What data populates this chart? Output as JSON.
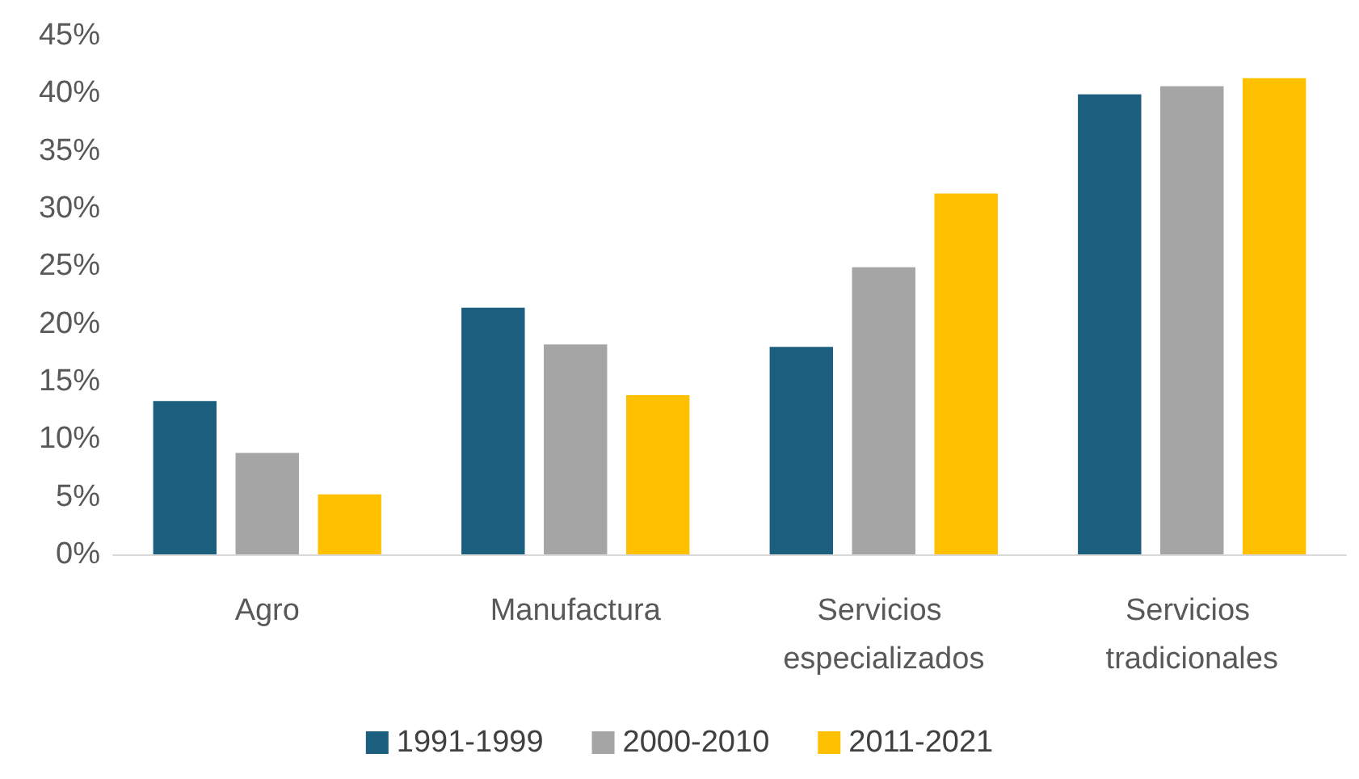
{
  "chart_data": {
    "type": "bar",
    "categories": [
      "Agro",
      "Manufactura",
      "Servicios especializados",
      "Servicios tradicionales"
    ],
    "series": [
      {
        "name": "1991-1999",
        "color": "#1b5e7e",
        "values": [
          13.3,
          21.4,
          18.0,
          39.9
        ]
      },
      {
        "name": "2000-2010",
        "color": "#a5a5a5",
        "values": [
          8.8,
          18.2,
          24.9,
          40.6
        ]
      },
      {
        "name": "2011-2021",
        "color": "#ffc000",
        "values": [
          5.2,
          13.8,
          31.3,
          41.3
        ]
      }
    ],
    "ylim": [
      0,
      45
    ],
    "yticks": [
      {
        "value": 0,
        "label": "0%"
      },
      {
        "value": 5,
        "label": "5%"
      },
      {
        "value": 10,
        "label": "10%"
      },
      {
        "value": 15,
        "label": "15%"
      },
      {
        "value": 20,
        "label": "20%"
      },
      {
        "value": 25,
        "label": "25%"
      },
      {
        "value": 30,
        "label": "30%"
      },
      {
        "value": 35,
        "label": "35%"
      },
      {
        "value": 40,
        "label": "40%"
      },
      {
        "value": 45,
        "label": "45%"
      }
    ],
    "grid": false,
    "legend": "bottom"
  }
}
